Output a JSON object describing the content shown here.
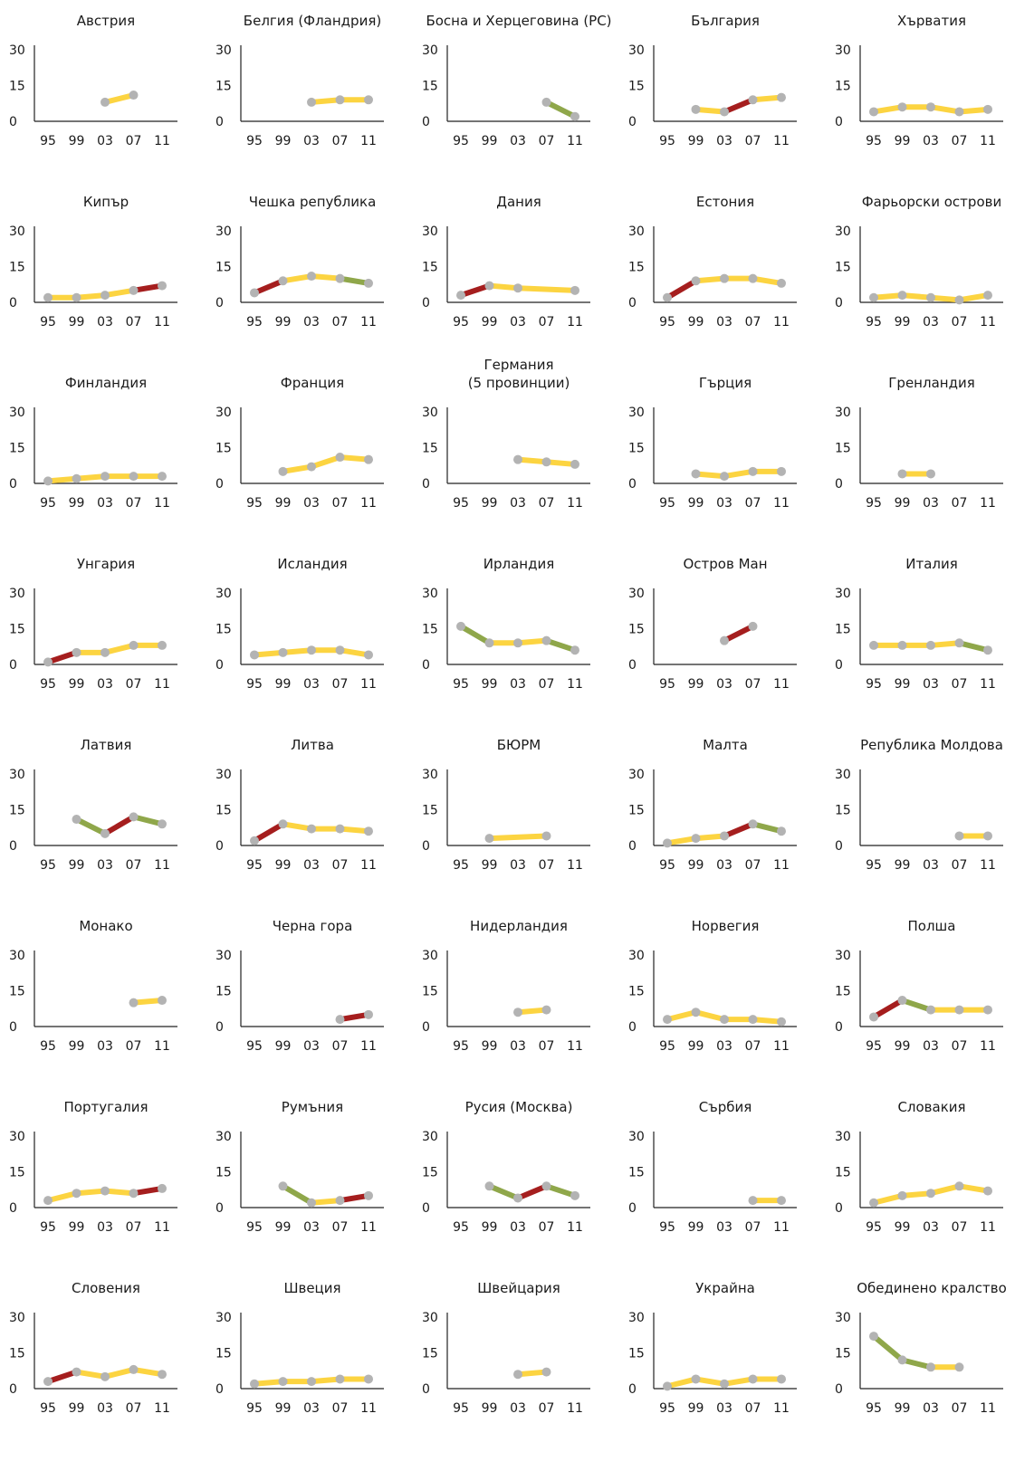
{
  "colors": {
    "stable": "#fcd441",
    "increase": "#a51e1e",
    "decrease": "#8fa74a",
    "marker": "#b3b3b3",
    "axis": "#222222"
  },
  "chart_data": [
    {
      "type": "line",
      "title": "Австрия",
      "categories": [
        "95",
        "99",
        "03",
        "07",
        "11"
      ],
      "yticks": [
        "0",
        "15",
        "30"
      ],
      "ylim": [
        0,
        30
      ],
      "values": [
        null,
        null,
        8,
        11,
        null
      ],
      "trends": [
        null,
        null,
        "stable",
        null
      ]
    },
    {
      "type": "line",
      "title": "Белгия (Фландрия)",
      "categories": [
        "95",
        "99",
        "03",
        "07",
        "11"
      ],
      "yticks": [
        "0",
        "15",
        "30"
      ],
      "ylim": [
        0,
        30
      ],
      "values": [
        null,
        null,
        8,
        9,
        9
      ],
      "trends": [
        null,
        null,
        "stable",
        "stable"
      ]
    },
    {
      "type": "line",
      "title": "Босна и Херцеговина (РС)",
      "categories": [
        "95",
        "99",
        "03",
        "07",
        "11"
      ],
      "yticks": [
        "0",
        "15",
        "30"
      ],
      "ylim": [
        0,
        30
      ],
      "values": [
        null,
        null,
        null,
        8,
        2
      ],
      "trends": [
        null,
        null,
        null,
        "decrease"
      ]
    },
    {
      "type": "line",
      "title": "България",
      "categories": [
        "95",
        "99",
        "03",
        "07",
        "11"
      ],
      "yticks": [
        "0",
        "15",
        "30"
      ],
      "ylim": [
        0,
        30
      ],
      "values": [
        null,
        5,
        4,
        9,
        10
      ],
      "trends": [
        null,
        "stable",
        "increase",
        "stable"
      ]
    },
    {
      "type": "line",
      "title": "Хърватия",
      "categories": [
        "95",
        "99",
        "03",
        "07",
        "11"
      ],
      "yticks": [
        "0",
        "15",
        "30"
      ],
      "ylim": [
        0,
        30
      ],
      "values": [
        4,
        6,
        6,
        4,
        5
      ],
      "trends": [
        "stable",
        "stable",
        "stable",
        "stable"
      ]
    },
    {
      "type": "line",
      "title": "Кипър",
      "categories": [
        "95",
        "99",
        "03",
        "07",
        "11"
      ],
      "yticks": [
        "0",
        "15",
        "30"
      ],
      "ylim": [
        0,
        30
      ],
      "values": [
        2,
        2,
        3,
        5,
        7
      ],
      "trends": [
        "stable",
        "stable",
        "stable",
        "increase"
      ]
    },
    {
      "type": "line",
      "title": "Чешка република",
      "categories": [
        "95",
        "99",
        "03",
        "07",
        "11"
      ],
      "yticks": [
        "0",
        "15",
        "30"
      ],
      "ylim": [
        0,
        30
      ],
      "values": [
        4,
        9,
        11,
        10,
        8
      ],
      "trends": [
        "increase",
        "stable",
        "stable",
        "decrease"
      ]
    },
    {
      "type": "line",
      "title": "Дания",
      "categories": [
        "95",
        "99",
        "03",
        "07",
        "11"
      ],
      "yticks": [
        "0",
        "15",
        "30"
      ],
      "ylim": [
        0,
        30
      ],
      "values": [
        3,
        7,
        6,
        null,
        5
      ],
      "trends": [
        "increase",
        "stable",
        "stable",
        null
      ]
    },
    {
      "type": "line",
      "title": "Естония",
      "categories": [
        "95",
        "99",
        "03",
        "07",
        "11"
      ],
      "yticks": [
        "0",
        "15",
        "30"
      ],
      "ylim": [
        0,
        30
      ],
      "values": [
        2,
        9,
        10,
        10,
        8
      ],
      "trends": [
        "increase",
        "stable",
        "stable",
        "stable"
      ]
    },
    {
      "type": "line",
      "title": "Фарьорски острови",
      "categories": [
        "95",
        "99",
        "03",
        "07",
        "11"
      ],
      "yticks": [
        "0",
        "15",
        "30"
      ],
      "ylim": [
        0,
        30
      ],
      "values": [
        2,
        3,
        2,
        1,
        3
      ],
      "trends": [
        "stable",
        "stable",
        "stable",
        "stable"
      ]
    },
    {
      "type": "line",
      "title": "Финландия",
      "categories": [
        "95",
        "99",
        "03",
        "07",
        "11"
      ],
      "yticks": [
        "0",
        "15",
        "30"
      ],
      "ylim": [
        0,
        30
      ],
      "values": [
        1,
        2,
        3,
        3,
        3
      ],
      "trends": [
        "stable",
        "stable",
        "stable",
        "stable"
      ]
    },
    {
      "type": "line",
      "title": "Франция",
      "categories": [
        "95",
        "99",
        "03",
        "07",
        "11"
      ],
      "yticks": [
        "0",
        "15",
        "30"
      ],
      "ylim": [
        0,
        30
      ],
      "values": [
        null,
        5,
        7,
        11,
        10
      ],
      "trends": [
        null,
        "stable",
        "stable",
        "stable"
      ]
    },
    {
      "type": "line",
      "title": "Германия\n(5 провинции)",
      "categories": [
        "95",
        "99",
        "03",
        "07",
        "11"
      ],
      "yticks": [
        "0",
        "15",
        "30"
      ],
      "ylim": [
        0,
        30
      ],
      "values": [
        null,
        null,
        10,
        9,
        8
      ],
      "trends": [
        null,
        null,
        "stable",
        "stable"
      ]
    },
    {
      "type": "line",
      "title": "Гърция",
      "categories": [
        "95",
        "99",
        "03",
        "07",
        "11"
      ],
      "yticks": [
        "0",
        "15",
        "30"
      ],
      "ylim": [
        0,
        30
      ],
      "values": [
        null,
        4,
        3,
        5,
        5
      ],
      "trends": [
        null,
        "stable",
        "stable",
        "stable"
      ]
    },
    {
      "type": "line",
      "title": "Гренландия",
      "categories": [
        "95",
        "99",
        "03",
        "07",
        "11"
      ],
      "yticks": [
        "0",
        "15",
        "30"
      ],
      "ylim": [
        0,
        30
      ],
      "values": [
        null,
        4,
        4,
        null,
        null
      ],
      "trends": [
        null,
        "stable",
        null,
        null
      ]
    },
    {
      "type": "line",
      "title": "Унгария",
      "categories": [
        "95",
        "99",
        "03",
        "07",
        "11"
      ],
      "yticks": [
        "0",
        "15",
        "30"
      ],
      "ylim": [
        0,
        30
      ],
      "values": [
        1,
        5,
        5,
        8,
        8
      ],
      "trends": [
        "increase",
        "stable",
        "stable",
        "stable"
      ]
    },
    {
      "type": "line",
      "title": "Исландия",
      "categories": [
        "95",
        "99",
        "03",
        "07",
        "11"
      ],
      "yticks": [
        "0",
        "15",
        "30"
      ],
      "ylim": [
        0,
        30
      ],
      "values": [
        4,
        5,
        6,
        6,
        4
      ],
      "trends": [
        "stable",
        "stable",
        "stable",
        "stable"
      ]
    },
    {
      "type": "line",
      "title": "Ирландия",
      "categories": [
        "95",
        "99",
        "03",
        "07",
        "11"
      ],
      "yticks": [
        "0",
        "15",
        "30"
      ],
      "ylim": [
        0,
        30
      ],
      "values": [
        16,
        9,
        9,
        10,
        6
      ],
      "trends": [
        "decrease",
        "stable",
        "stable",
        "decrease"
      ]
    },
    {
      "type": "line",
      "title": "Остров Ман",
      "categories": [
        "95",
        "99",
        "03",
        "07",
        "11"
      ],
      "yticks": [
        "0",
        "15",
        "30"
      ],
      "ylim": [
        0,
        30
      ],
      "values": [
        null,
        null,
        10,
        16,
        null
      ],
      "trends": [
        null,
        null,
        "increase",
        null
      ]
    },
    {
      "type": "line",
      "title": "Италия",
      "categories": [
        "95",
        "99",
        "03",
        "07",
        "11"
      ],
      "yticks": [
        "0",
        "15",
        "30"
      ],
      "ylim": [
        0,
        30
      ],
      "values": [
        8,
        8,
        8,
        9,
        6
      ],
      "trends": [
        "stable",
        "stable",
        "stable",
        "decrease"
      ]
    },
    {
      "type": "line",
      "title": "Латвия",
      "categories": [
        "95",
        "99",
        "03",
        "07",
        "11"
      ],
      "yticks": [
        "0",
        "15",
        "30"
      ],
      "ylim": [
        0,
        30
      ],
      "values": [
        null,
        11,
        5,
        12,
        9
      ],
      "trends": [
        null,
        "decrease",
        "increase",
        "decrease"
      ]
    },
    {
      "type": "line",
      "title": "Литва",
      "categories": [
        "95",
        "99",
        "03",
        "07",
        "11"
      ],
      "yticks": [
        "0",
        "15",
        "30"
      ],
      "ylim": [
        0,
        30
      ],
      "values": [
        2,
        9,
        7,
        7,
        6
      ],
      "trends": [
        "increase",
        "stable",
        "stable",
        "stable"
      ]
    },
    {
      "type": "line",
      "title": "БЮРМ",
      "categories": [
        "95",
        "99",
        "03",
        "07",
        "11"
      ],
      "yticks": [
        "0",
        "15",
        "30"
      ],
      "ylim": [
        0,
        30
      ],
      "values": [
        null,
        3,
        null,
        4,
        null
      ],
      "trends": [
        null,
        "stable",
        "stable",
        null
      ]
    },
    {
      "type": "line",
      "title": "Малта",
      "categories": [
        "95",
        "99",
        "03",
        "07",
        "11"
      ],
      "yticks": [
        "0",
        "15",
        "30"
      ],
      "ylim": [
        0,
        30
      ],
      "values": [
        1,
        3,
        4,
        9,
        6
      ],
      "trends": [
        "stable",
        "stable",
        "increase",
        "decrease"
      ]
    },
    {
      "type": "line",
      "title": "Република Молдова",
      "categories": [
        "95",
        "99",
        "03",
        "07",
        "11"
      ],
      "yticks": [
        "0",
        "15",
        "30"
      ],
      "ylim": [
        0,
        30
      ],
      "values": [
        null,
        null,
        null,
        4,
        4
      ],
      "trends": [
        null,
        null,
        null,
        "stable"
      ]
    },
    {
      "type": "line",
      "title": "Монако",
      "categories": [
        "95",
        "99",
        "03",
        "07",
        "11"
      ],
      "yticks": [
        "0",
        "15",
        "30"
      ],
      "ylim": [
        0,
        30
      ],
      "values": [
        null,
        null,
        null,
        10,
        11
      ],
      "trends": [
        null,
        null,
        null,
        "stable"
      ]
    },
    {
      "type": "line",
      "title": "Черна гора",
      "categories": [
        "95",
        "99",
        "03",
        "07",
        "11"
      ],
      "yticks": [
        "0",
        "15",
        "30"
      ],
      "ylim": [
        0,
        30
      ],
      "values": [
        null,
        null,
        null,
        3,
        5
      ],
      "trends": [
        null,
        null,
        null,
        "increase"
      ]
    },
    {
      "type": "line",
      "title": "Нидерландия",
      "categories": [
        "95",
        "99",
        "03",
        "07",
        "11"
      ],
      "yticks": [
        "0",
        "15",
        "30"
      ],
      "ylim": [
        0,
        30
      ],
      "values": [
        null,
        null,
        6,
        7,
        null
      ],
      "trends": [
        null,
        null,
        "stable",
        null
      ]
    },
    {
      "type": "line",
      "title": "Норвегия",
      "categories": [
        "95",
        "99",
        "03",
        "07",
        "11"
      ],
      "yticks": [
        "0",
        "15",
        "30"
      ],
      "ylim": [
        0,
        30
      ],
      "values": [
        3,
        6,
        3,
        3,
        2
      ],
      "trends": [
        "stable",
        "stable",
        "stable",
        "stable"
      ]
    },
    {
      "type": "line",
      "title": "Полша",
      "categories": [
        "95",
        "99",
        "03",
        "07",
        "11"
      ],
      "yticks": [
        "0",
        "15",
        "30"
      ],
      "ylim": [
        0,
        30
      ],
      "values": [
        4,
        11,
        7,
        7,
        7
      ],
      "trends": [
        "increase",
        "decrease",
        "stable",
        "stable"
      ]
    },
    {
      "type": "line",
      "title": "Португалия",
      "categories": [
        "95",
        "99",
        "03",
        "07",
        "11"
      ],
      "yticks": [
        "0",
        "15",
        "30"
      ],
      "ylim": [
        0,
        30
      ],
      "values": [
        3,
        6,
        7,
        6,
        8
      ],
      "trends": [
        "stable",
        "stable",
        "stable",
        "increase"
      ]
    },
    {
      "type": "line",
      "title": "Румъния",
      "categories": [
        "95",
        "99",
        "03",
        "07",
        "11"
      ],
      "yticks": [
        "0",
        "15",
        "30"
      ],
      "ylim": [
        0,
        30
      ],
      "values": [
        null,
        9,
        2,
        3,
        5
      ],
      "trends": [
        null,
        "decrease",
        "stable",
        "increase"
      ]
    },
    {
      "type": "line",
      "title": "Русия (Москва)",
      "categories": [
        "95",
        "99",
        "03",
        "07",
        "11"
      ],
      "yticks": [
        "0",
        "15",
        "30"
      ],
      "ylim": [
        0,
        30
      ],
      "values": [
        null,
        9,
        4,
        9,
        5
      ],
      "trends": [
        null,
        "decrease",
        "increase",
        "decrease"
      ]
    },
    {
      "type": "line",
      "title": "Сърбия",
      "categories": [
        "95",
        "99",
        "03",
        "07",
        "11"
      ],
      "yticks": [
        "0",
        "15",
        "30"
      ],
      "ylim": [
        0,
        30
      ],
      "values": [
        null,
        null,
        null,
        3,
        3
      ],
      "trends": [
        null,
        null,
        null,
        "stable"
      ]
    },
    {
      "type": "line",
      "title": "Словакия",
      "categories": [
        "95",
        "99",
        "03",
        "07",
        "11"
      ],
      "yticks": [
        "0",
        "15",
        "30"
      ],
      "ylim": [
        0,
        30
      ],
      "values": [
        2,
        5,
        6,
        9,
        7
      ],
      "trends": [
        "stable",
        "stable",
        "stable",
        "stable"
      ]
    },
    {
      "type": "line",
      "title": "Словения",
      "categories": [
        "95",
        "99",
        "03",
        "07",
        "11"
      ],
      "yticks": [
        "0",
        "15",
        "30"
      ],
      "ylim": [
        0,
        30
      ],
      "values": [
        3,
        7,
        5,
        8,
        6
      ],
      "trends": [
        "increase",
        "stable",
        "stable",
        "stable"
      ]
    },
    {
      "type": "line",
      "title": "Швеция",
      "categories": [
        "95",
        "99",
        "03",
        "07",
        "11"
      ],
      "yticks": [
        "0",
        "15",
        "30"
      ],
      "ylim": [
        0,
        30
      ],
      "values": [
        2,
        3,
        3,
        4,
        4
      ],
      "trends": [
        "stable",
        "stable",
        "stable",
        "stable"
      ]
    },
    {
      "type": "line",
      "title": "Швейцария",
      "categories": [
        "95",
        "99",
        "03",
        "07",
        "11"
      ],
      "yticks": [
        "0",
        "15",
        "30"
      ],
      "ylim": [
        0,
        30
      ],
      "values": [
        null,
        null,
        6,
        7,
        null
      ],
      "trends": [
        null,
        null,
        "stable",
        null
      ]
    },
    {
      "type": "line",
      "title": "Украйна",
      "categories": [
        "95",
        "99",
        "03",
        "07",
        "11"
      ],
      "yticks": [
        "0",
        "15",
        "30"
      ],
      "ylim": [
        0,
        30
      ],
      "values": [
        1,
        4,
        2,
        4,
        4
      ],
      "trends": [
        "stable",
        "stable",
        "stable",
        "stable"
      ]
    },
    {
      "type": "line",
      "title": "Обединено кралство",
      "categories": [
        "95",
        "99",
        "03",
        "07",
        "11"
      ],
      "yticks": [
        "0",
        "15",
        "30"
      ],
      "ylim": [
        0,
        30
      ],
      "values": [
        22,
        12,
        9,
        9,
        null
      ],
      "trends": [
        "decrease",
        "decrease",
        "stable",
        null
      ]
    }
  ]
}
